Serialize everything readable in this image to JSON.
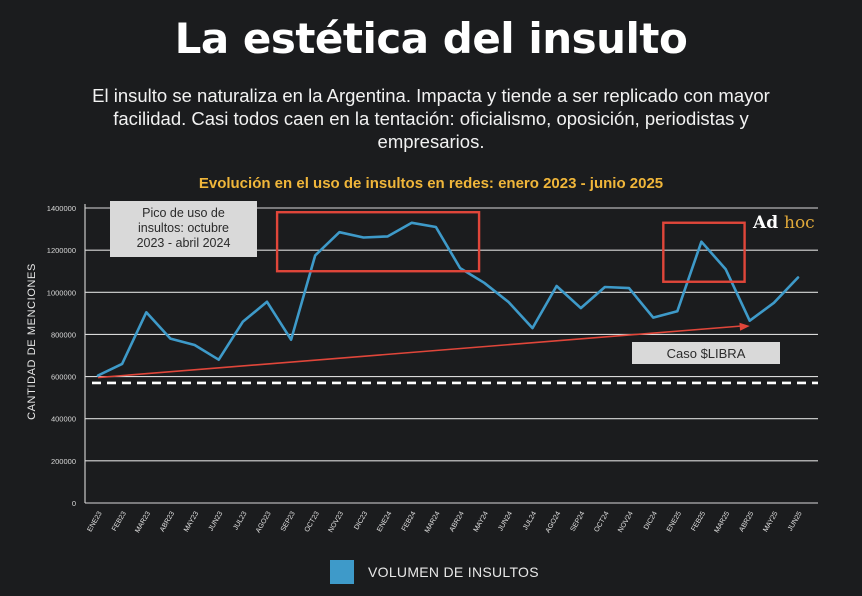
{
  "header": {
    "title": "La estética del insulto",
    "subtitle": "El insulto se naturaliza en la Argentina. Impacta y tiende a ser replicado con mayor facilidad. Casi todos caen en la tentación: oficialismo, oposición, periodistas y empresarios."
  },
  "chart_data": {
    "type": "line",
    "title": "Evolución en el uso de insultos en redes: enero 2023 - junio 2025",
    "ylabel": "CANTIDAD DE MENCIONES",
    "xlabel": "",
    "ylim": [
      0,
      1400000
    ],
    "yticks": [
      0,
      200000,
      400000,
      600000,
      800000,
      1000000,
      1200000,
      1400000
    ],
    "grid": true,
    "categories": [
      "ENE23",
      "FEB23",
      "MAR23",
      "ABR23",
      "MAY23",
      "JUN23",
      "JUL23",
      "AGO23",
      "SEP23",
      "OCT23",
      "NOV23",
      "DIC23",
      "ENE24",
      "FEB24",
      "MAR24",
      "ABR24",
      "MAY24",
      "JUN24",
      "JUL24",
      "AGO24",
      "SEP24",
      "OCT24",
      "NOV24",
      "DIC24",
      "ENE25",
      "FEB25",
      "MAR25",
      "ABR25",
      "MAY25",
      "JUN25"
    ],
    "series": [
      {
        "name": "VOLUMEN DE INSULTOS",
        "color": "#3e9ac9",
        "values": [
          605000,
          660000,
          905000,
          780000,
          750000,
          680000,
          860000,
          955000,
          775000,
          1175000,
          1285000,
          1260000,
          1265000,
          1330000,
          1310000,
          1115000,
          1045000,
          955000,
          830000,
          1030000,
          925000,
          1025000,
          1020000,
          880000,
          910000,
          1240000,
          1110000,
          865000,
          950000,
          1070000
        ]
      }
    ],
    "baseline": {
      "value": 570000,
      "style": "dashed",
      "color": "#ffffff"
    },
    "trend_arrow": {
      "from": [
        "ENE23",
        605000
      ],
      "to": [
        "ABR25",
        840000
      ],
      "color": "#e0463a"
    },
    "highlights": [
      {
        "from": "SEP23",
        "to": "ABR24",
        "ymin": 1100000,
        "ymax": 1380000,
        "color": "#e0463a"
      },
      {
        "from": "ENE25",
        "to": "MAR25",
        "ymin": 1050000,
        "ymax": 1330000,
        "color": "#e0463a"
      }
    ],
    "annotations": [
      {
        "text": "Pico de uso de insultos: octubre 2023 - abril 2024",
        "lines": [
          "Pico de uso de",
          "insultos: octubre",
          "2023 - abril 2024"
        ]
      },
      {
        "text": "Caso $LIBRA"
      }
    ],
    "brand": {
      "ad": "Ad",
      "hoc": "hoc"
    },
    "legend": "bottom"
  }
}
